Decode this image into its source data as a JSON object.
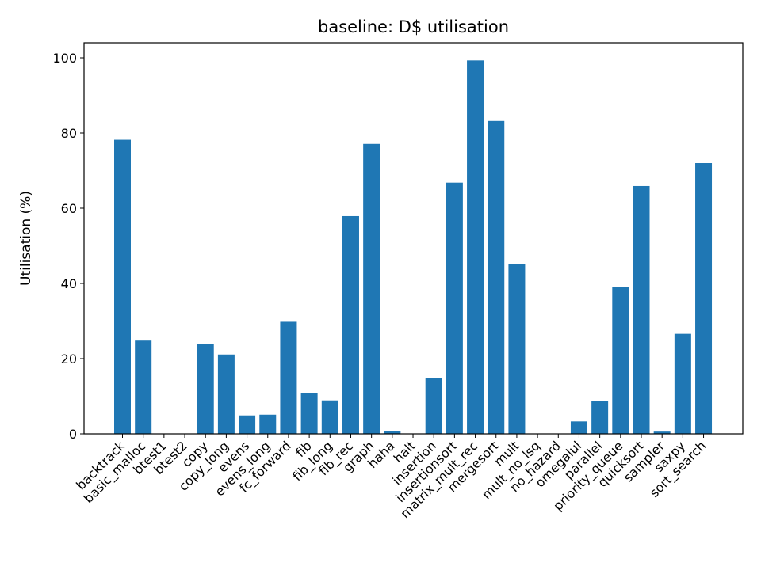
{
  "chart_data": {
    "type": "bar",
    "title": "baseline: D$ utilisation",
    "xlabel": "",
    "ylabel": "Utilisation (%)",
    "ylim": [
      0,
      104
    ],
    "yticks": [
      0,
      20,
      40,
      60,
      80,
      100
    ],
    "grid": false,
    "legend": "none",
    "bar_color": "#1f77b4",
    "categories": [
      "backtrack",
      "basic_malloc",
      "btest1",
      "btest2",
      "copy",
      "copy_long",
      "evens",
      "evens_long",
      "fc_forward",
      "fib",
      "fib_long",
      "fib_rec",
      "graph",
      "haha",
      "halt",
      "insertion",
      "insertionsort",
      "matrix_mult_rec",
      "mergesort",
      "mult",
      "mult_no_lsq",
      "no_hazard",
      "omegalul",
      "parallel",
      "priority_queue",
      "quicksort",
      "sampler",
      "saxpy",
      "sort_search"
    ],
    "values": [
      78.2,
      24.8,
      0,
      0,
      23.9,
      21.1,
      4.9,
      5.1,
      29.8,
      10.8,
      8.9,
      57.9,
      77.1,
      0.8,
      0,
      14.8,
      66.8,
      99.3,
      83.2,
      45.2,
      0,
      0,
      3.3,
      8.7,
      39.1,
      65.9,
      0.6,
      26.6,
      72.0
    ]
  }
}
